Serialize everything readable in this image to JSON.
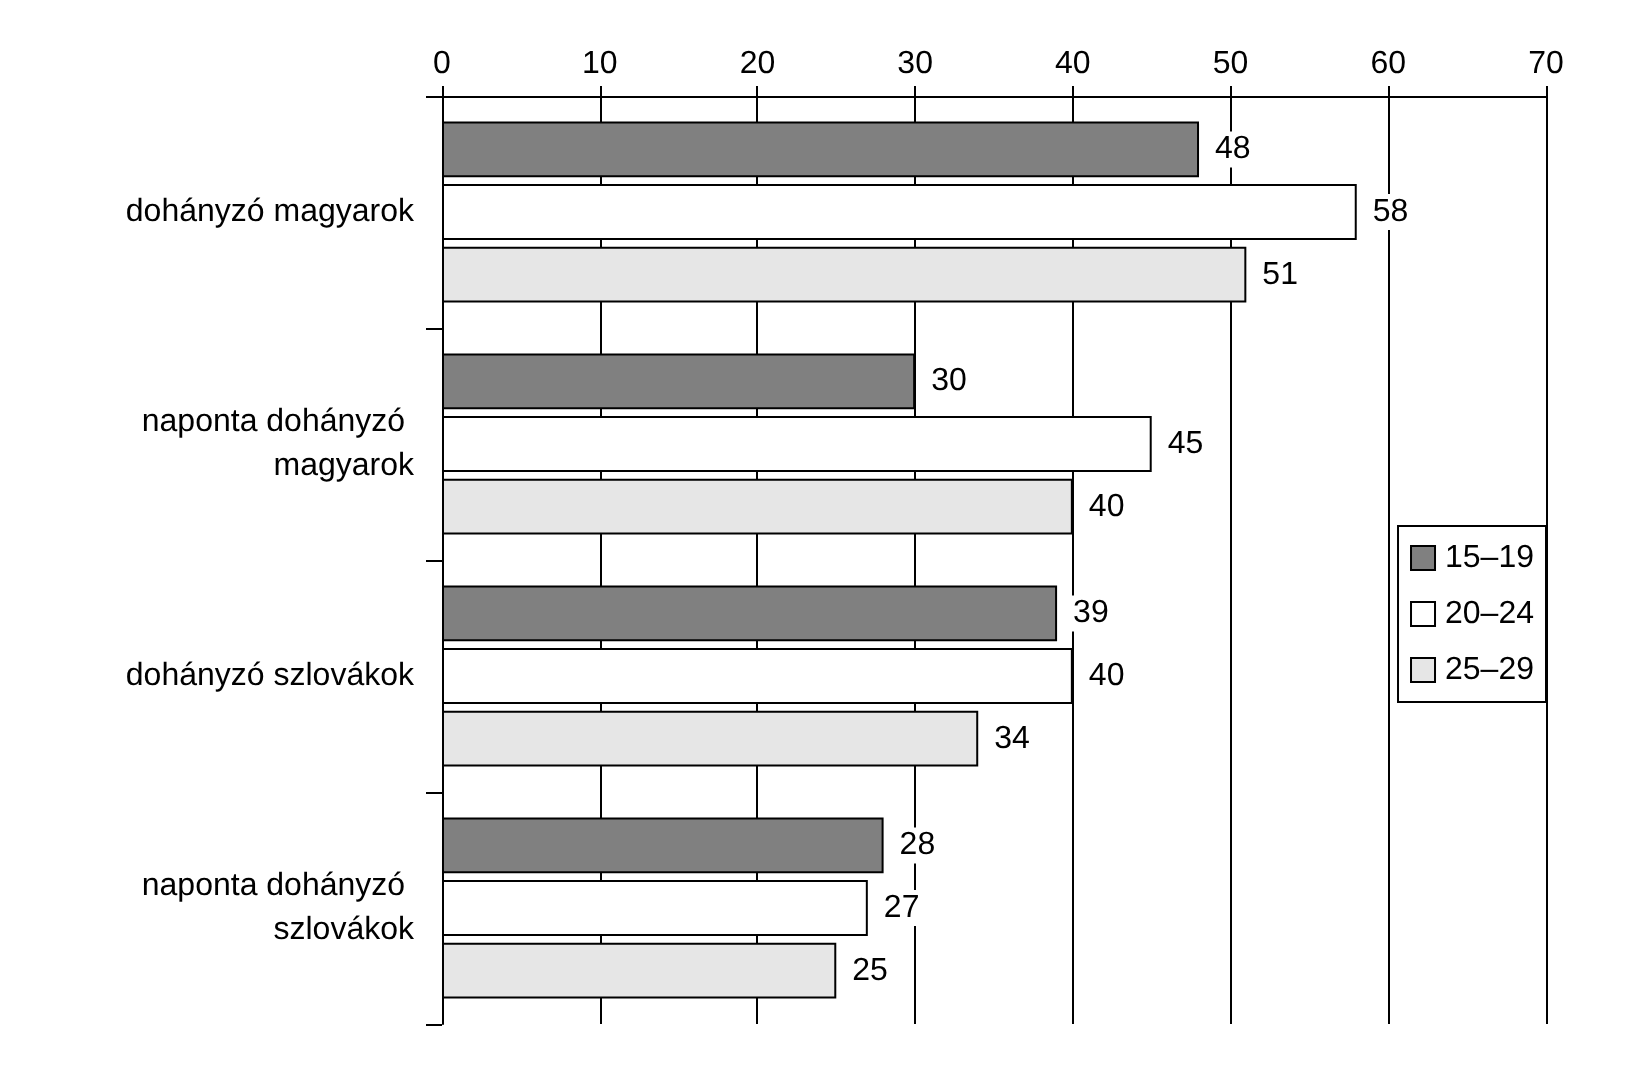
{
  "chart_data": {
    "type": "bar",
    "orientation": "horizontal",
    "categories": [
      "dohányzó magyarok",
      "naponta dohányzó magyarok",
      "dohányzó szlovákok",
      "naponta dohányzó szlovákok"
    ],
    "series": [
      {
        "name": "15–19",
        "color": "#808080",
        "values": [
          48,
          30,
          39,
          28
        ]
      },
      {
        "name": "20–24",
        "color": "#ffffff",
        "values": [
          58,
          45,
          40,
          27
        ]
      },
      {
        "name": "25–29",
        "color": "#e6e6e6",
        "values": [
          51,
          40,
          34,
          25
        ]
      }
    ],
    "xlim": [
      0,
      70
    ],
    "xticks": [
      0,
      10,
      20,
      30,
      40,
      50,
      60,
      70
    ],
    "grid": "x",
    "legend": "right",
    "data_labels": true
  }
}
